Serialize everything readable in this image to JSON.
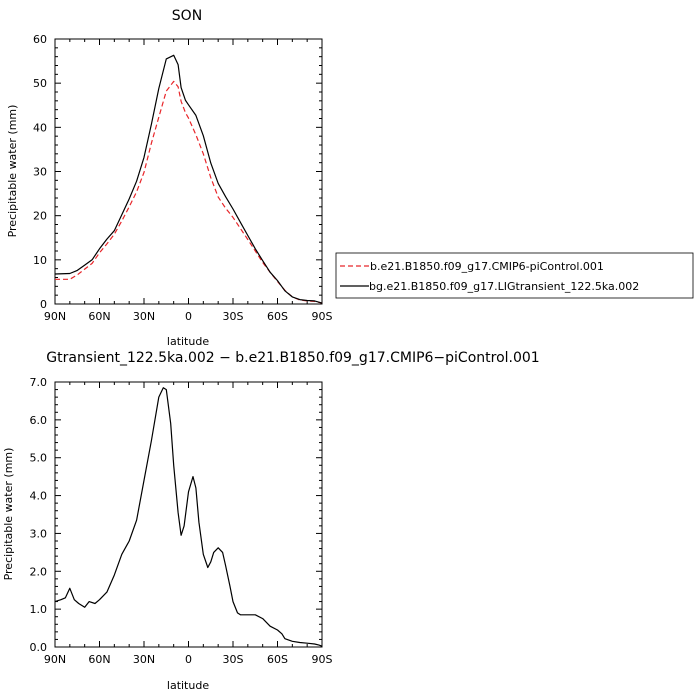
{
  "chart_data": [
    {
      "type": "line",
      "title": "SON",
      "xlabel": "latitude",
      "ylabel": "Precipitable water (mm)",
      "ylim": [
        0,
        60
      ],
      "yticks": [
        0,
        10,
        20,
        30,
        40,
        50,
        60
      ],
      "y_tick_labels": [
        "0",
        "10",
        "20",
        "30",
        "40",
        "50",
        "60"
      ],
      "xlim": [
        90,
        -90
      ],
      "xticks": [
        90,
        60,
        30,
        0,
        -30,
        -60,
        -90
      ],
      "x_tick_labels": [
        "90N",
        "60N",
        "30N",
        "0",
        "30S",
        "60S",
        "90S"
      ],
      "legend_position": "right",
      "series": [
        {
          "name": "b.e21.B1850.f09_g17.CMIP6-piControl.001",
          "color": "#e8262a",
          "style": "dashed",
          "x": [
            90,
            80,
            75,
            70,
            65,
            60,
            55,
            50,
            45,
            40,
            35,
            30,
            25,
            20,
            15,
            10,
            7,
            5,
            2,
            0,
            -5,
            -10,
            -15,
            -20,
            -25,
            -30,
            -35,
            -40,
            -45,
            -50,
            -55,
            -60,
            -65,
            -70,
            -75,
            -80,
            -85,
            -90
          ],
          "values": [
            5.6,
            5.6,
            6.6,
            7.9,
            9.2,
            11.6,
            13.6,
            15.8,
            18.8,
            22.0,
            25.4,
            29.8,
            36.4,
            42.3,
            48.2,
            50.4,
            49.2,
            45.9,
            43.3,
            42.1,
            38.3,
            34.0,
            28.6,
            24.2,
            21.7,
            19.6,
            17.1,
            14.6,
            12.0,
            9.4,
            7.2,
            5.1,
            3.1,
            1.6,
            0.9,
            0.7,
            0.6,
            0.2
          ]
        },
        {
          "name": "bg.e21.B1850.f09_g17.LIGtransient_122.5ka.002",
          "color": "#000000",
          "style": "solid",
          "x": [
            90,
            80,
            75,
            70,
            65,
            60,
            55,
            50,
            45,
            40,
            35,
            30,
            25,
            20,
            15,
            10,
            7,
            5,
            2,
            0,
            -5,
            -10,
            -15,
            -20,
            -25,
            -30,
            -35,
            -40,
            -45,
            -50,
            -55,
            -60,
            -65,
            -70,
            -75,
            -80,
            -85,
            -90
          ],
          "values": [
            6.8,
            6.9,
            7.6,
            8.8,
            10.0,
            12.5,
            14.7,
            16.6,
            20.2,
            23.8,
            27.8,
            33.2,
            40.7,
            48.8,
            55.5,
            56.3,
            54.2,
            49.0,
            46.1,
            45.1,
            42.7,
            38.1,
            31.9,
            27.3,
            24.3,
            21.5,
            18.5,
            15.5,
            12.5,
            9.8,
            7.2,
            5.3,
            3.0,
            1.6,
            1.0,
            0.8,
            0.7,
            0.2
          ]
        }
      ]
    },
    {
      "type": "line",
      "title": "Gtransient_122.5ka.002 − b.e21.B1850.f09_g17.CMIP6−piControl.001",
      "xlabel": "latitude",
      "ylabel": "Precipitable water (mm)",
      "ylim": [
        0,
        7
      ],
      "yticks": [
        0,
        1,
        2,
        3,
        4,
        5,
        6,
        7
      ],
      "y_tick_labels": [
        "0.0",
        "1.0",
        "2.0",
        "3.0",
        "4.0",
        "5.0",
        "6.0",
        "7.0"
      ],
      "xlim": [
        90,
        -90
      ],
      "xticks": [
        90,
        60,
        30,
        0,
        -30,
        -60,
        -90
      ],
      "x_tick_labels": [
        "90N",
        "60N",
        "30N",
        "0",
        "30S",
        "60S",
        "90S"
      ],
      "series": [
        {
          "name": "",
          "color": "#000000",
          "style": "solid",
          "x": [
            90,
            86,
            83,
            80,
            77,
            74,
            70,
            67,
            63,
            60,
            55,
            50,
            45,
            40,
            35,
            30,
            25,
            20,
            17,
            15,
            12,
            10,
            7,
            5,
            3,
            0,
            -3,
            -5,
            -7,
            -10,
            -13,
            -15,
            -17,
            -20,
            -23,
            -25,
            -28,
            -30,
            -33,
            -35,
            -40,
            -45,
            -50,
            -55,
            -60,
            -63,
            -65,
            -70,
            -75,
            -80,
            -85,
            -88,
            -90
          ],
          "values": [
            1.2,
            1.25,
            1.3,
            1.55,
            1.25,
            1.15,
            1.05,
            1.2,
            1.15,
            1.25,
            1.45,
            1.9,
            2.45,
            2.8,
            3.35,
            4.4,
            5.45,
            6.6,
            6.85,
            6.8,
            5.9,
            4.8,
            3.55,
            2.95,
            3.2,
            4.1,
            4.5,
            4.2,
            3.3,
            2.45,
            2.1,
            2.25,
            2.5,
            2.62,
            2.5,
            2.15,
            1.6,
            1.2,
            0.9,
            0.85,
            0.85,
            0.85,
            0.75,
            0.55,
            0.45,
            0.35,
            0.22,
            0.15,
            0.12,
            0.1,
            0.08,
            0.05,
            0.02
          ]
        }
      ]
    }
  ]
}
